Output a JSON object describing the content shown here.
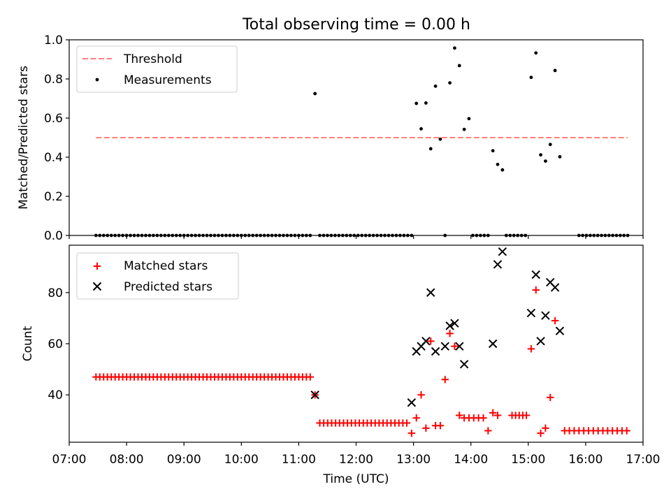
{
  "title": "Total observing time = 0.00 h",
  "chart_data": [
    {
      "type": "scatter",
      "ylabel": "Matched/Predicted stars",
      "xlabel": "",
      "xlim": [
        "07:00",
        "17:00"
      ],
      "ylim": [
        0,
        1.0
      ],
      "yticks": [
        "0.0",
        "0.2",
        "0.4",
        "0.6",
        "0.8",
        "1.0"
      ],
      "legend_position": "top-left",
      "legend": [
        {
          "label": "Threshold",
          "style": "dashed-line",
          "color": "#ff7f7f"
        },
        {
          "label": "Measurements",
          "style": "dot",
          "color": "#000000"
        }
      ],
      "threshold": {
        "value": 0.5,
        "x_start": "07:28",
        "x_end": "16:44"
      },
      "measurements_zero_runs": [
        {
          "start": "07:28",
          "end": "11:12",
          "count": 57
        },
        {
          "start": "11:22",
          "end": "12:58",
          "count": 25
        },
        {
          "start": "13:33",
          "end": "13:33",
          "count": 1
        },
        {
          "start": "14:02",
          "end": "14:18",
          "count": 5
        },
        {
          "start": "14:37",
          "end": "14:57",
          "count": 6
        },
        {
          "start": "15:53",
          "end": "16:44",
          "count": 14
        }
      ],
      "measurements_nonzero": [
        {
          "t": "11:17",
          "y": 0.725
        },
        {
          "t": "13:03",
          "y": 0.675
        },
        {
          "t": "13:08",
          "y": 0.545
        },
        {
          "t": "13:13",
          "y": 0.677
        },
        {
          "t": "13:18",
          "y": 0.443
        },
        {
          "t": "13:23",
          "y": 0.763
        },
        {
          "t": "13:28",
          "y": 0.492
        },
        {
          "t": "13:38",
          "y": 0.78
        },
        {
          "t": "13:43",
          "y": 0.958
        },
        {
          "t": "13:48",
          "y": 0.868
        },
        {
          "t": "13:53",
          "y": 0.542
        },
        {
          "t": "13:58",
          "y": 0.597
        },
        {
          "t": "14:23",
          "y": 0.433
        },
        {
          "t": "14:28",
          "y": 0.363
        },
        {
          "t": "14:33",
          "y": 0.335
        },
        {
          "t": "15:03",
          "y": 0.808
        },
        {
          "t": "15:08",
          "y": 0.933
        },
        {
          "t": "15:13",
          "y": 0.412
        },
        {
          "t": "15:18",
          "y": 0.38
        },
        {
          "t": "15:23",
          "y": 0.465
        },
        {
          "t": "15:28",
          "y": 0.843
        },
        {
          "t": "15:33",
          "y": 0.402
        }
      ]
    },
    {
      "type": "scatter",
      "xlabel": "Time (UTC)",
      "ylabel": "Count",
      "xlim": [
        "07:00",
        "17:00"
      ],
      "ylim": [
        21.5,
        98.5
      ],
      "yticks": [
        "40",
        "60",
        "80"
      ],
      "xticks": [
        "07:00",
        "08:00",
        "09:00",
        "10:00",
        "11:00",
        "12:00",
        "13:00",
        "14:00",
        "15:00",
        "16:00",
        "17:00"
      ],
      "legend_position": "top-left",
      "legend": [
        {
          "label": "Matched stars",
          "style": "plus",
          "color": "#ff0000"
        },
        {
          "label": "Predicted stars",
          "style": "x",
          "color": "#000000"
        }
      ],
      "matched_runs": [
        {
          "start": "07:28",
          "end": "11:12",
          "count": 57,
          "value": 47
        },
        {
          "start": "11:22",
          "end": "12:53",
          "count": 23,
          "value": 29
        },
        {
          "start": "14:43",
          "end": "14:58",
          "count": 5,
          "value": 32
        },
        {
          "start": "15:38",
          "end": "16:43",
          "count": 14,
          "value": 26
        }
      ],
      "matched_points": [
        {
          "t": "11:17",
          "y": 40
        },
        {
          "t": "12:58",
          "y": 25
        },
        {
          "t": "13:03",
          "y": 31
        },
        {
          "t": "13:08",
          "y": 40
        },
        {
          "t": "13:13",
          "y": 27
        },
        {
          "t": "13:18",
          "y": 61
        },
        {
          "t": "13:23",
          "y": 28
        },
        {
          "t": "13:28",
          "y": 28
        },
        {
          "t": "13:33",
          "y": 46
        },
        {
          "t": "13:38",
          "y": 64
        },
        {
          "t": "13:43",
          "y": 59
        },
        {
          "t": "13:48",
          "y": 32
        },
        {
          "t": "13:53",
          "y": 31
        },
        {
          "t": "13:58",
          "y": 31
        },
        {
          "t": "14:03",
          "y": 31
        },
        {
          "t": "14:08",
          "y": 31
        },
        {
          "t": "14:13",
          "y": 31
        },
        {
          "t": "14:18",
          "y": 26
        },
        {
          "t": "14:23",
          "y": 33
        },
        {
          "t": "14:28",
          "y": 32
        },
        {
          "t": "15:03",
          "y": 58
        },
        {
          "t": "15:08",
          "y": 81
        },
        {
          "t": "15:13",
          "y": 25
        },
        {
          "t": "15:18",
          "y": 27
        },
        {
          "t": "15:23",
          "y": 39
        },
        {
          "t": "15:28",
          "y": 69
        }
      ],
      "predicted_points": [
        {
          "t": "11:17",
          "y": 40
        },
        {
          "t": "12:58",
          "y": 37
        },
        {
          "t": "13:03",
          "y": 57
        },
        {
          "t": "13:08",
          "y": 59
        },
        {
          "t": "13:13",
          "y": 61
        },
        {
          "t": "13:18",
          "y": 80
        },
        {
          "t": "13:23",
          "y": 57
        },
        {
          "t": "13:33",
          "y": 59
        },
        {
          "t": "13:38",
          "y": 67
        },
        {
          "t": "13:43",
          "y": 68
        },
        {
          "t": "13:48",
          "y": 59
        },
        {
          "t": "13:53",
          "y": 52
        },
        {
          "t": "14:23",
          "y": 60
        },
        {
          "t": "14:28",
          "y": 91
        },
        {
          "t": "14:33",
          "y": 96
        },
        {
          "t": "15:03",
          "y": 72
        },
        {
          "t": "15:08",
          "y": 87
        },
        {
          "t": "15:13",
          "y": 61
        },
        {
          "t": "15:18",
          "y": 71
        },
        {
          "t": "15:23",
          "y": 84
        },
        {
          "t": "15:28",
          "y": 82
        },
        {
          "t": "15:33",
          "y": 65
        }
      ]
    }
  ]
}
